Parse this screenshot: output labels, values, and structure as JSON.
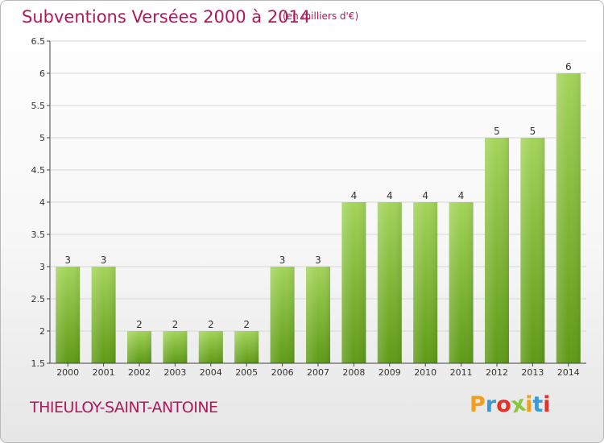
{
  "header": {
    "title": "Subventions Versées 2000 à 2014",
    "unit": "(en milliers d'€)"
  },
  "footer": {
    "commune": "THIEULOY-SAINT-ANTOINE",
    "logo_letters": [
      "P",
      "r",
      "o",
      "x",
      "i",
      "t",
      "i"
    ],
    "logo_colors": [
      "#f0a020",
      "#3a9ad9",
      "#e2302a",
      "#8cc63f",
      "#f0a020",
      "#3a9ad9",
      "#e2302a"
    ]
  },
  "colors": {
    "bar_top": "#a3d45a",
    "bar_bottom": "#5e9a16",
    "title": "#b0185c"
  },
  "chart_data": {
    "type": "bar",
    "title": "Subventions Versées 2000 à 2014",
    "subtitle": "(en milliers d'€)",
    "xlabel": "",
    "ylabel": "",
    "categories": [
      "2000",
      "2001",
      "2002",
      "2003",
      "2004",
      "2005",
      "2006",
      "2007",
      "2008",
      "2009",
      "2010",
      "2011",
      "2012",
      "2013",
      "2014"
    ],
    "values": [
      3,
      3,
      2,
      2,
      2,
      2,
      3,
      3,
      4,
      4,
      4,
      4,
      5,
      5,
      6
    ],
    "ylim": [
      1.5,
      6.5
    ],
    "yticks": [
      "1.5",
      "2",
      "2.5",
      "3",
      "3.5",
      "4",
      "4.5",
      "5",
      "5.5",
      "6",
      "6.5"
    ],
    "grid": true
  }
}
